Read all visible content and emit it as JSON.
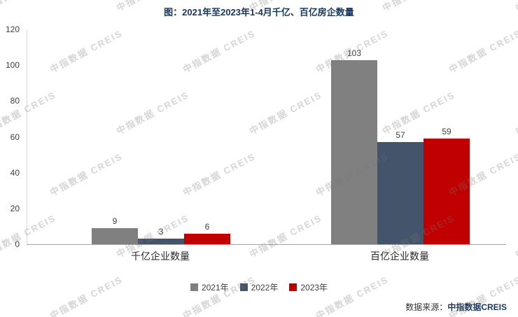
{
  "title": "图：2021年至2023年1-4月千亿、百亿房企数量",
  "chart_data": {
    "type": "bar",
    "categories": [
      "千亿企业数量",
      "百亿企业数量"
    ],
    "series": [
      {
        "name": "2021年",
        "color": "#808080",
        "values": [
          9,
          103
        ]
      },
      {
        "name": "2022年",
        "color": "#44546A",
        "values": [
          3,
          57
        ]
      },
      {
        "name": "2023年",
        "color": "#C00000",
        "values": [
          6,
          59
        ]
      }
    ],
    "title": "图：2021年至2023年1-4月千亿、百亿房企数量",
    "xlabel": "",
    "ylabel": "",
    "ylim": [
      0,
      120
    ],
    "yticks": [
      0,
      20,
      40,
      60,
      80,
      100,
      120
    ],
    "grid": false,
    "legend_position": "bottom"
  },
  "source": {
    "prefix": "数据来源：",
    "name": "中指数据CREIS"
  },
  "watermark_text": "中指数据 CREIS",
  "colors": {
    "title": "#16365C",
    "source_name": "#16365C",
    "axis_line": "#A6A6A6",
    "value_label": "#404040"
  }
}
